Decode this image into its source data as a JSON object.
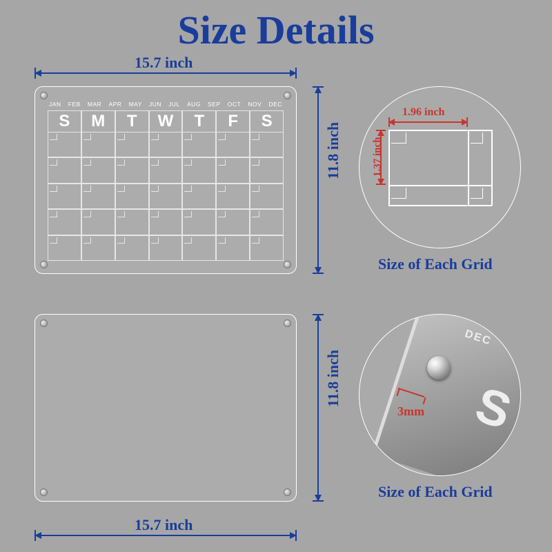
{
  "title": "Size Details",
  "dims": {
    "width_top": "15.7 inch",
    "width_bottom": "15.7 inch",
    "height_cal": "11.8 inch",
    "height_blank": "11.8 inch"
  },
  "calendar": {
    "months": [
      "JAN",
      "FEB",
      "MAR",
      "APR",
      "MAY",
      "JUN",
      "JUL",
      "AUG",
      "SEP",
      "OCT",
      "NOV",
      "DEC"
    ],
    "days": [
      "S",
      "M",
      "T",
      "W",
      "T",
      "F",
      "S"
    ],
    "rows": 5
  },
  "grid_detail": {
    "width": "1.96 inch",
    "height": "1.37 inch",
    "label": "Size of Each Grid"
  },
  "thickness": {
    "value": "3mm",
    "label": "Size of Each Grid",
    "text_dec": "DEC",
    "text_s": "S"
  },
  "colors": {
    "bg": "#a6a6a6",
    "accent_blue": "#1a3d9c",
    "accent_red": "#c8352e",
    "line_white": "#ffffff"
  }
}
